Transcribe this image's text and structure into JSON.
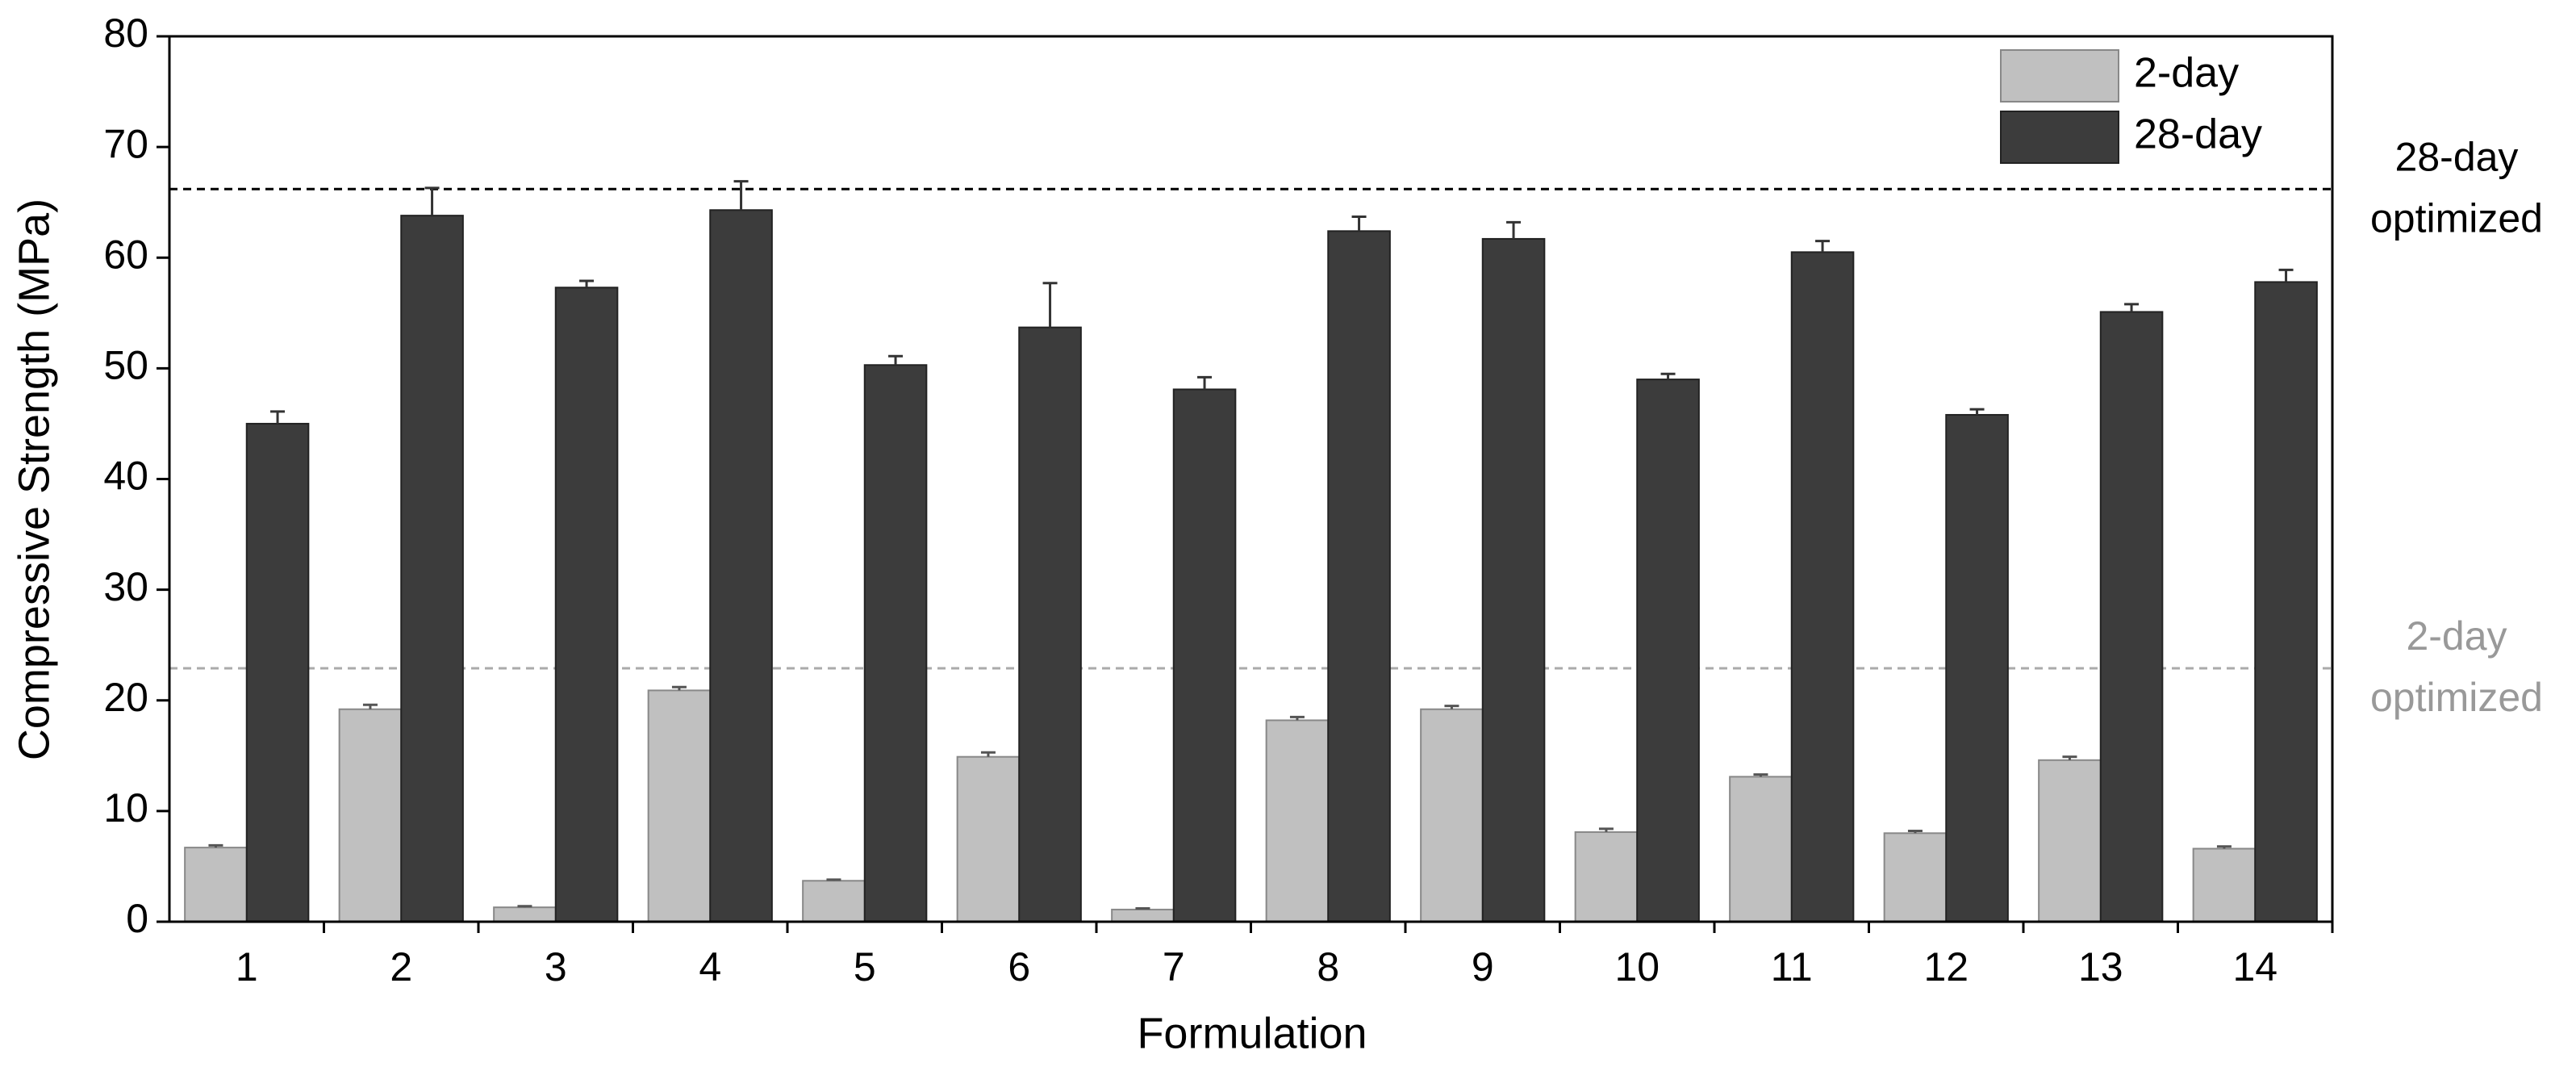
{
  "chart_data": {
    "type": "bar",
    "xlabel": "Formulation",
    "ylabel": "Compressive Strength (MPa)",
    "categories": [
      "1",
      "2",
      "3",
      "4",
      "5",
      "6",
      "7",
      "8",
      "9",
      "10",
      "11",
      "12",
      "13",
      "14"
    ],
    "series": [
      {
        "name": "2-day",
        "color": "#c0c0c0",
        "values": [
          6.7,
          19.2,
          1.3,
          20.9,
          3.7,
          14.9,
          1.1,
          18.2,
          19.2,
          8.1,
          13.1,
          8.0,
          14.6,
          6.6
        ],
        "errors": [
          0.2,
          0.4,
          0.1,
          0.3,
          0.1,
          0.4,
          0.1,
          0.3,
          0.3,
          0.3,
          0.2,
          0.2,
          0.3,
          0.2
        ]
      },
      {
        "name": "28-day",
        "color": "#3c3c3c",
        "values": [
          45.0,
          63.8,
          57.3,
          64.3,
          50.3,
          53.7,
          48.1,
          62.4,
          61.7,
          49.0,
          60.5,
          45.8,
          55.1,
          57.8
        ],
        "errors": [
          1.1,
          2.5,
          0.6,
          2.6,
          0.8,
          4.0,
          1.1,
          1.3,
          1.5,
          0.5,
          1.0,
          0.5,
          0.7,
          1.1
        ]
      }
    ],
    "reference_lines": [
      {
        "value": 66.2,
        "color": "#000000",
        "label": [
          "28-day",
          "optimized"
        ]
      },
      {
        "value": 22.9,
        "color": "#aaaaaa",
        "label": [
          "2-day",
          "optimized"
        ]
      }
    ],
    "ylim": [
      0,
      80
    ],
    "yticks": [
      0,
      10,
      20,
      30,
      40,
      50,
      60,
      70,
      80
    ],
    "legend": "upper right"
  }
}
